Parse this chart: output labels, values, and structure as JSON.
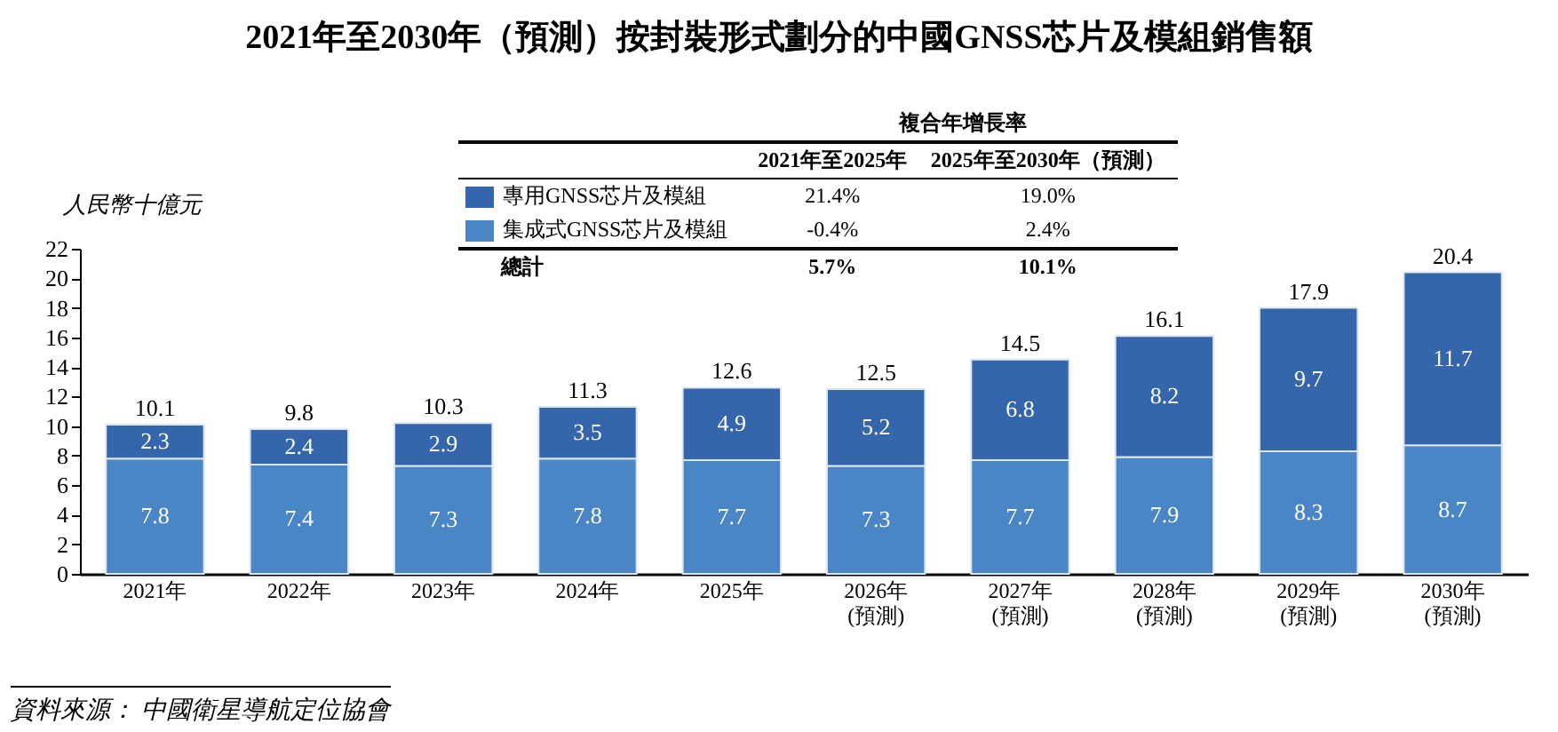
{
  "chart_data": {
    "type": "bar",
    "title": "2021年至2030年（預測）按封裝形式劃分的中國GNSS芯片及模組銷售額",
    "ylabel": "人民幣十億元",
    "categories": [
      "2021年",
      "2022年",
      "2023年",
      "2024年",
      "2025年",
      "2026年\n(預測)",
      "2027年\n(預測)",
      "2028年\n(預測)",
      "2029年\n(預測)",
      "2030年\n(預測)"
    ],
    "stacked": true,
    "series": [
      {
        "name": "集成式GNSS芯片及模組",
        "color": "#4a86c5",
        "values": [
          7.8,
          7.4,
          7.3,
          7.8,
          7.7,
          7.3,
          7.7,
          7.9,
          8.3,
          8.7
        ]
      },
      {
        "name": "專用GNSS芯片及模組",
        "color": "#3565ab",
        "values": [
          2.3,
          2.4,
          2.9,
          3.5,
          4.9,
          5.2,
          6.8,
          8.2,
          9.7,
          11.7
        ]
      }
    ],
    "totals": [
      "10.1",
      "9.8",
      "10.3",
      "11.3",
      "12.6",
      "12.5",
      "14.5",
      "16.1",
      "17.9",
      "20.4"
    ],
    "data_labels": true,
    "ylim": [
      0,
      22
    ],
    "yticks": [
      0,
      2,
      4,
      6,
      8,
      10,
      12,
      14,
      16,
      18,
      20,
      22
    ],
    "grid": false,
    "legend": "top",
    "annotations": [
      "複合年增長率",
      "2021年至2025年",
      "2025年至2030年（預測）",
      "-0.4%",
      "2.4%",
      "21.4%",
      "19.0%",
      "總計",
      "5.7%",
      "10.1%",
      "資料來源： 中國衛星導航定位協會"
    ]
  }
}
